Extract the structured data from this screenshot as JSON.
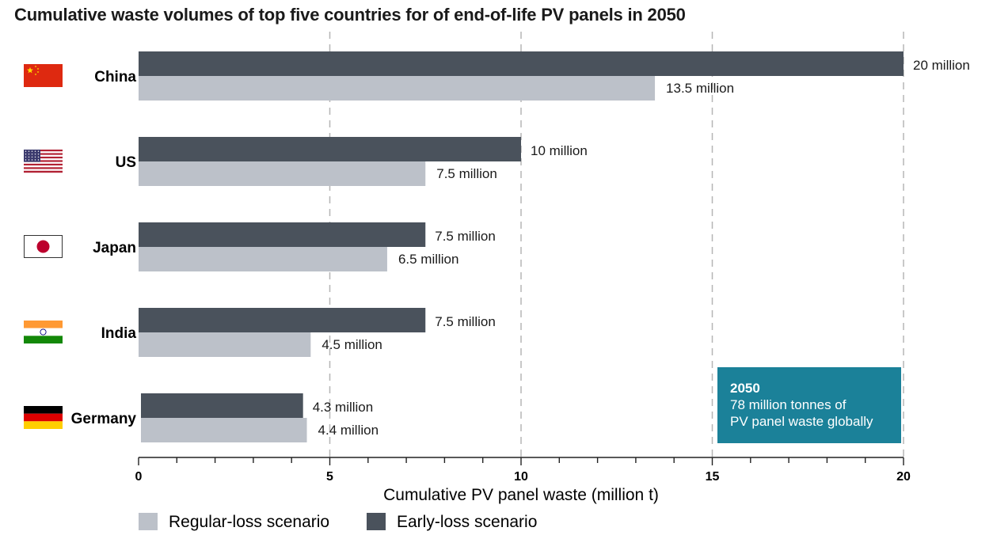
{
  "title": "Cumulative waste volumes of top five countries for of end-of-life PV panels in 2050",
  "chart_data": {
    "type": "bar",
    "orientation": "horizontal",
    "categories": [
      "China",
      "US",
      "Japan",
      "India",
      "Germany"
    ],
    "series": [
      {
        "name": "Early-loss scenario",
        "color": "#4a525c",
        "values": [
          20,
          10,
          7.5,
          7.5,
          4.3
        ],
        "labels": [
          "20 million",
          "10 million",
          "7.5 million",
          "7.5 million",
          "4.3 million"
        ]
      },
      {
        "name": "Regular-loss scenario",
        "color": "#bcc1c9",
        "values": [
          13.5,
          7.5,
          6.5,
          4.5,
          4.4
        ],
        "labels": [
          "13.5 million",
          "7.5 million",
          "6.5 million",
          "4.5 million",
          "4.4 million"
        ]
      }
    ],
    "xlabel": "Cumulative PV panel waste (million t)",
    "ylabel": "",
    "xlim": [
      0,
      20
    ],
    "xticks": [
      0,
      5,
      10,
      15,
      20
    ],
    "xtick_labels": [
      "0",
      "5",
      "10",
      "15",
      "20"
    ],
    "grid": "vertical dashed at major ticks",
    "legend": [
      {
        "name": "Regular-loss scenario",
        "color": "#bcc1c9"
      },
      {
        "name": "Early-loss scenario",
        "color": "#4a525c"
      }
    ],
    "legend_placement": "bottom-left",
    "flags": [
      "china-flag-icon",
      "us-flag-icon",
      "japan-flag-icon",
      "india-flag-icon",
      "germany-flag-icon"
    ]
  },
  "callout": {
    "year": "2050",
    "line1": "78 million tonnes of",
    "line2": "PV panel waste globally",
    "color": "#1b8199"
  }
}
